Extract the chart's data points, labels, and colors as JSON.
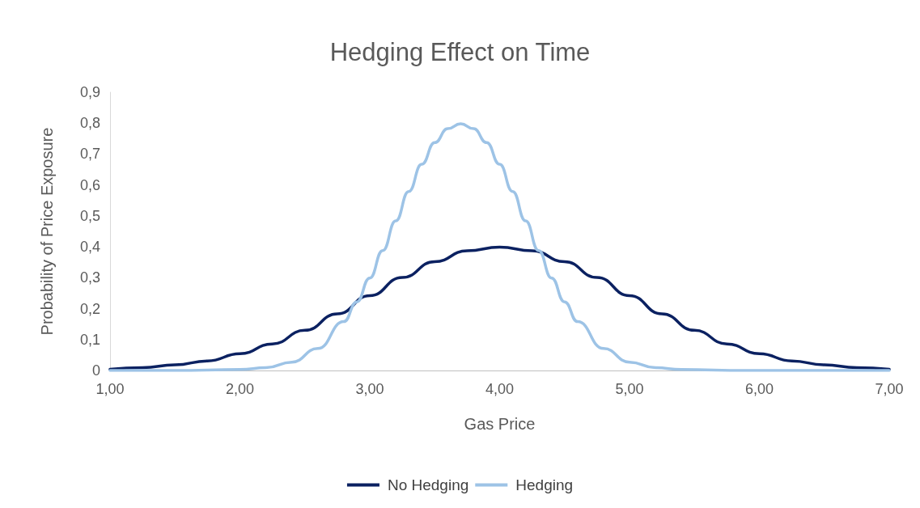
{
  "chart_data": {
    "type": "line",
    "title": "Hedging Effect on Time",
    "xlabel": "Gas Price",
    "ylabel": "Probability of Price Exposure",
    "xlim": [
      1,
      7
    ],
    "xticks": [
      {
        "value": 1,
        "label": "1,00"
      },
      {
        "value": 2,
        "label": "2,00"
      },
      {
        "value": 3,
        "label": "3,00"
      },
      {
        "value": 4,
        "label": "4,00"
      },
      {
        "value": 5,
        "label": "5,00"
      },
      {
        "value": 6,
        "label": "6,00"
      },
      {
        "value": 7,
        "label": "7,00"
      }
    ],
    "ylim": [
      0,
      0.9
    ],
    "yticks": [
      0,
      {
        "value": 0.1,
        "label": "0,1"
      },
      {
        "value": 0.2,
        "label": "0,2"
      },
      {
        "value": 0.3,
        "label": "0,3"
      },
      {
        "value": 0.4,
        "label": "0,4"
      },
      {
        "value": 0.5,
        "label": "0,5"
      },
      {
        "value": 0.6,
        "label": "0,6"
      },
      {
        "value": 0.7,
        "label": "0,7"
      },
      {
        "value": 0.8,
        "label": "0,8"
      },
      {
        "value": 0.9,
        "label": "0,9"
      }
    ],
    "grid": false,
    "legend": "bottom",
    "marker": "none",
    "line_style": "solid",
    "series": [
      {
        "name": "No Hedging",
        "color": "#0b2161",
        "x": [
          1,
          1.25,
          1.5,
          1.75,
          2,
          2.25,
          2.5,
          2.75,
          3,
          3.25,
          3.5,
          3.75,
          4,
          4.25,
          4.5,
          4.75,
          5,
          5.25,
          5.5,
          5.75,
          6,
          6.25,
          6.5,
          6.75,
          7
        ],
        "values": [
          0.004,
          0.009,
          0.018,
          0.031,
          0.054,
          0.086,
          0.13,
          0.183,
          0.242,
          0.301,
          0.352,
          0.387,
          0.399,
          0.387,
          0.352,
          0.301,
          0.242,
          0.183,
          0.13,
          0.086,
          0.054,
          0.031,
          0.018,
          0.009,
          0.004
        ]
      },
      {
        "name": "Hedging",
        "color": "#9dc3e6",
        "x": [
          1,
          1.5,
          2,
          2.2,
          2.4,
          2.6,
          2.8,
          2.9,
          3,
          3.1,
          3.2,
          3.3,
          3.4,
          3.5,
          3.6,
          3.7,
          3.8,
          3.9,
          4,
          4.1,
          4.2,
          4.3,
          4.4,
          4.5,
          4.6,
          4.8,
          5,
          5.2,
          5.4,
          5.9,
          7
        ],
        "values": [
          0,
          0,
          0.003,
          0.009,
          0.027,
          0.071,
          0.158,
          0.222,
          0.299,
          0.388,
          0.484,
          0.579,
          0.667,
          0.737,
          0.782,
          0.798,
          0.782,
          0.737,
          0.667,
          0.579,
          0.484,
          0.388,
          0.299,
          0.222,
          0.158,
          0.071,
          0.027,
          0.009,
          0.003,
          0,
          0
        ]
      }
    ]
  }
}
